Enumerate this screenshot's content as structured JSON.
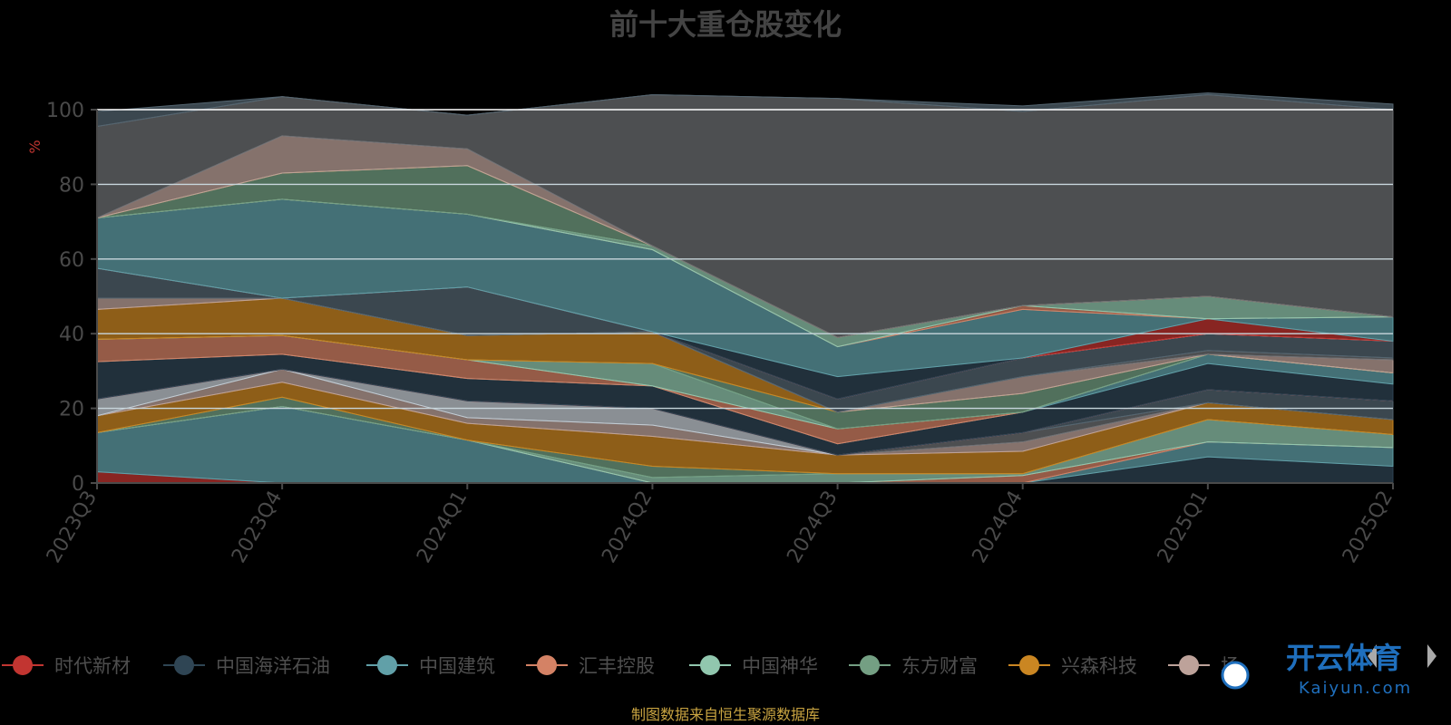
{
  "colors": {
    "background": "#000000",
    "palette": [
      "#c23531",
      "#2f4554",
      "#61a0a8",
      "#d48265",
      "#91c7ae",
      "#749f83",
      "#ca8622",
      "#bda29a",
      "#6e7074",
      "#546570",
      "#c4ccd3"
    ]
  },
  "footer": {
    "source": "制图数据来自恒生聚源数据库"
  },
  "logo": {
    "text": "开云体育",
    "sub": "Kaiyun.com"
  },
  "legend": {
    "page_prev_icon": "triangle-left-icon",
    "page_next_icon": "triangle-right-icon",
    "items": [
      "时代新材",
      "中国海洋石油",
      "中国建筑",
      "汇丰控股",
      "中国神华",
      "东方财富",
      "兴森科技",
      "场"
    ]
  },
  "chart_data": {
    "type": "area",
    "title": "前十大重仓股变化",
    "ylabel": "%",
    "ylim": [
      0,
      100
    ],
    "yticks": [
      0,
      20,
      40,
      60,
      80,
      100
    ],
    "categories": [
      "2023Q3",
      "2023Q4",
      "2024Q1",
      "2024Q2",
      "2024Q3",
      "2024Q4",
      "2025Q1",
      "2025Q2"
    ],
    "grid": true,
    "stacked": true,
    "legend_position": "bottom",
    "series": [
      {
        "name": "时代新材",
        "values": [
          3,
          0,
          0,
          0,
          0,
          0,
          0,
          0
        ]
      },
      {
        "values": [
          0,
          0,
          0,
          0,
          0,
          0,
          7,
          4.5
        ]
      },
      {
        "values": [
          10.5,
          20.5,
          11.5,
          0,
          0,
          0,
          4,
          5
        ]
      },
      {
        "values": [
          0,
          0,
          0,
          0,
          0,
          2,
          0,
          0
        ]
      },
      {
        "values": [
          0,
          0,
          0,
          1.5,
          2.5,
          0.5,
          6,
          3.5
        ]
      },
      {
        "values": [
          0,
          2.5,
          0,
          3,
          0,
          0,
          0,
          0
        ]
      },
      {
        "values": [
          4.5,
          4,
          4.5,
          8,
          5,
          6,
          4.5,
          4
        ]
      },
      {
        "values": [
          0,
          3.5,
          1.5,
          3,
          0,
          2.5,
          0,
          0
        ]
      },
      {
        "values": [
          0,
          0,
          0,
          0,
          0,
          2.5,
          0,
          0
        ]
      },
      {
        "values": [
          0,
          0,
          0,
          0,
          0,
          0,
          3.5,
          5
        ]
      },
      {
        "values": [
          4.5,
          0,
          4.5,
          4.5,
          0,
          0,
          0,
          0
        ]
      },
      {
        "values": [
          0,
          0,
          0,
          0,
          0,
          0,
          0,
          0
        ]
      },
      {
        "values": [
          10,
          4,
          6,
          6,
          3,
          5.5,
          7,
          4.5
        ]
      },
      {
        "values": [
          0,
          0,
          0,
          0,
          0,
          0,
          2.5,
          3
        ]
      },
      {
        "values": [
          6,
          5,
          5,
          0,
          4,
          0,
          0,
          0
        ]
      },
      {
        "values": [
          0,
          0,
          0,
          6,
          0,
          0,
          0,
          0
        ]
      },
      {
        "values": [
          0,
          0,
          0,
          0,
          4.5,
          5,
          0,
          0
        ]
      },
      {
        "values": [
          8,
          10,
          6.5,
          8.5,
          0,
          0,
          0,
          0
        ]
      },
      {
        "values": [
          3,
          0,
          0,
          0,
          0,
          4.5,
          0,
          3.5
        ]
      },
      {
        "values": [
          0,
          0,
          0,
          0,
          0,
          0,
          1,
          0.5
        ]
      },
      {
        "values": [
          8,
          0,
          13,
          0,
          3.5,
          5,
          4.5,
          4.5
        ]
      },
      {
        "values": [
          0,
          0,
          0,
          0,
          0,
          0,
          0,
          0
        ]
      },
      {
        "values": [
          0,
          0,
          0,
          0,
          0,
          0,
          4,
          0
        ]
      },
      {
        "values": [
          0,
          0,
          0,
          0,
          6,
          0,
          0,
          0
        ]
      },
      {
        "values": [
          13.5,
          26.5,
          19.5,
          22,
          8,
          13,
          0,
          6.5
        ]
      },
      {
        "values": [
          0,
          0,
          0,
          0,
          0,
          1,
          0,
          0
        ]
      },
      {
        "values": [
          0,
          0,
          0,
          1,
          2.5,
          0,
          6,
          0
        ]
      },
      {
        "values": [
          0,
          7,
          13,
          0,
          0,
          0,
          0,
          0
        ]
      },
      {
        "values": [
          0,
          0,
          0,
          0,
          0,
          0,
          0,
          0
        ]
      },
      {
        "values": [
          0,
          10,
          4.5,
          0,
          0,
          0,
          0,
          0
        ]
      },
      {
        "values": [
          24.5,
          10.5,
          9,
          40.5,
          64,
          52,
          54,
          55.5
        ]
      },
      {
        "values": [
          4,
          0,
          0,
          0,
          0,
          1.5,
          0.5,
          1.5
        ]
      }
    ]
  }
}
